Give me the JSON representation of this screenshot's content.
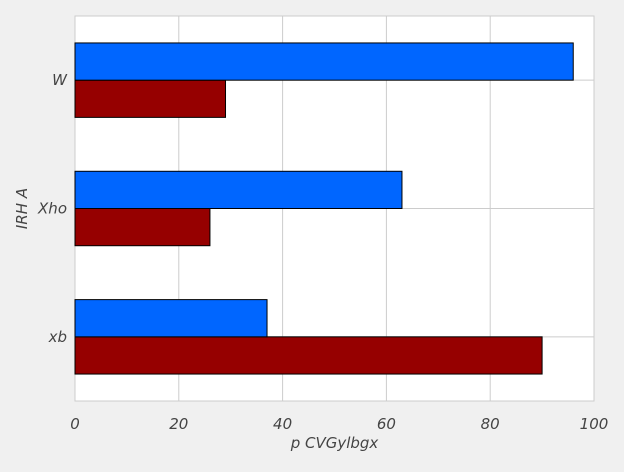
{
  "chart_data": {
    "type": "bar",
    "orientation": "horizontal",
    "categories": [
      "xb",
      "Xho",
      "W"
    ],
    "series": [
      {
        "values": [
          90,
          26,
          29
        ],
        "color": "#960000"
      },
      {
        "values": [
          37,
          63,
          96
        ],
        "color": "#0066ff"
      }
    ],
    "xlabel": "p CVGylbgx",
    "ylabel": "IRH A",
    "xlim": [
      0,
      100
    ],
    "xticks": [
      "0",
      "20",
      "40",
      "60",
      "80",
      "100"
    ],
    "grid": true
  }
}
